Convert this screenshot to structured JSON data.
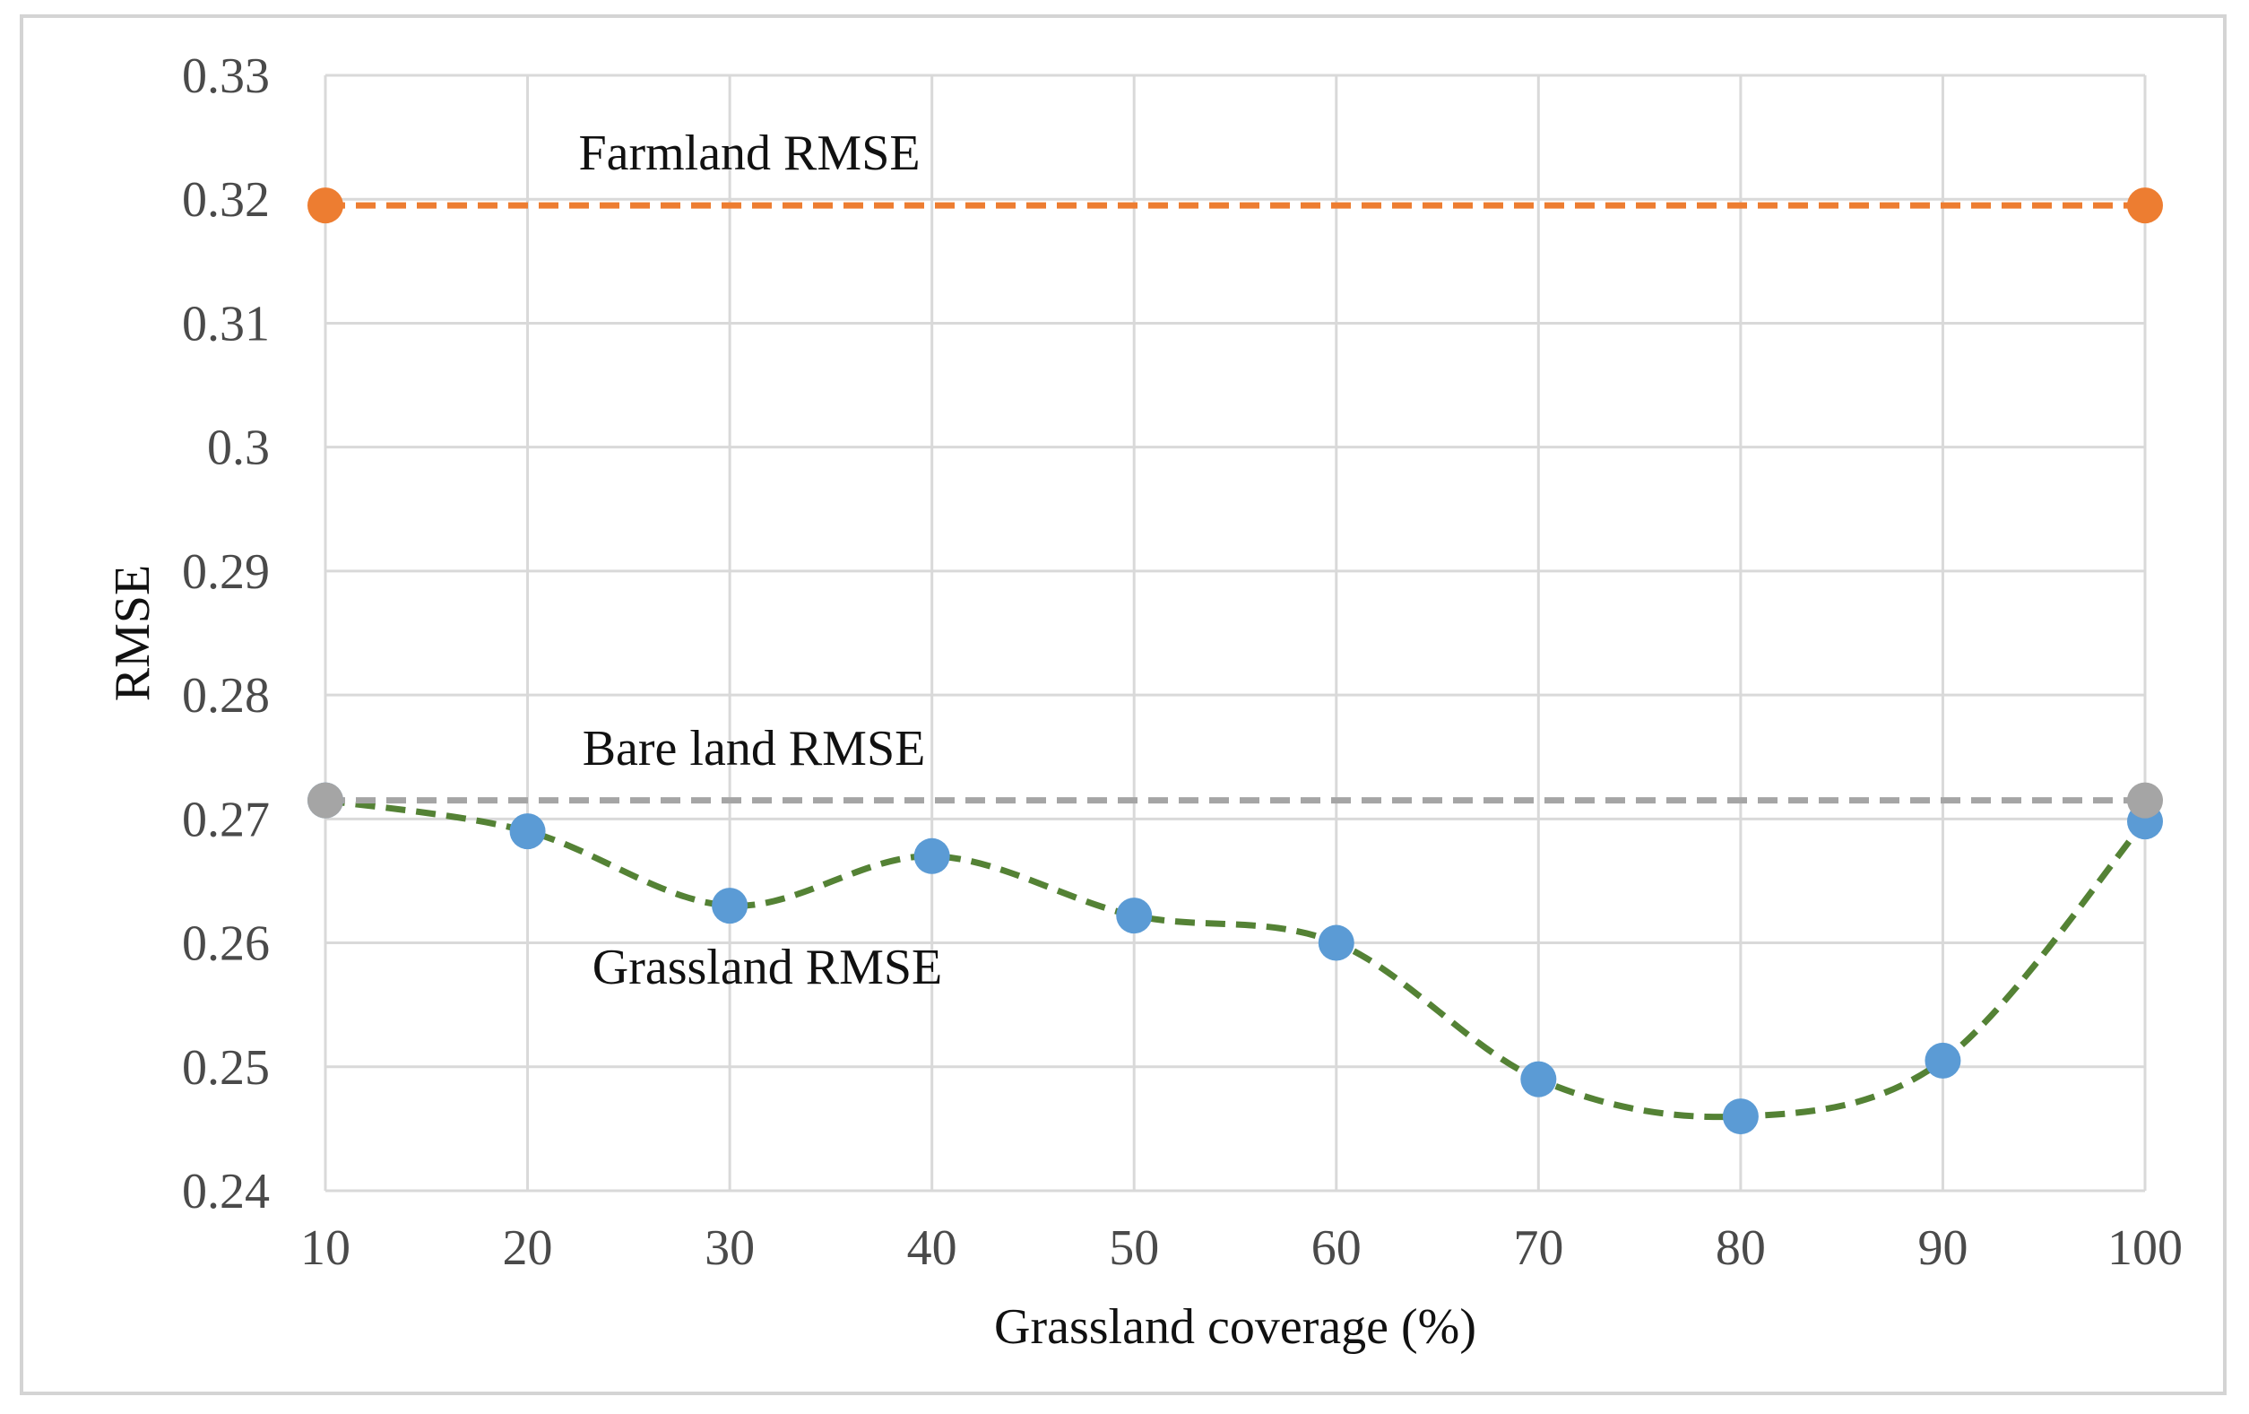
{
  "chart_data": {
    "type": "line",
    "title": "",
    "xlabel": "Grassland coverage (%)",
    "ylabel": "RMSE",
    "x": [
      10,
      20,
      30,
      40,
      50,
      60,
      70,
      80,
      90,
      100
    ],
    "xlim": [
      10,
      100
    ],
    "ylim": [
      0.24,
      0.33
    ],
    "y_ticks": [
      0.24,
      0.25,
      0.26,
      0.27,
      0.28,
      0.29,
      0.3,
      0.31,
      0.32,
      0.33
    ],
    "y_tick_labels": [
      "0.24",
      "0.25",
      "0.26",
      "0.27",
      "0.28",
      "0.29",
      "0.3",
      "0.31",
      "0.32",
      "0.33"
    ],
    "x_tick_labels": [
      "10",
      "20",
      "30",
      "40",
      "50",
      "60",
      "70",
      "80",
      "90",
      "100"
    ],
    "grid": true,
    "series": [
      {
        "name": "Farmland RMSE",
        "x": [
          10,
          100
        ],
        "values": [
          0.3195,
          0.3195
        ],
        "line_color": "#ed7d31",
        "marker_color": "#ed7d31",
        "line_style": "dashed",
        "smooth": false
      },
      {
        "name": "Bare land RMSE",
        "x": [
          10,
          100
        ],
        "values": [
          0.2715,
          0.2715
        ],
        "line_color": "#a5a5a5",
        "marker_color": "#a5a5a5",
        "line_style": "dashed",
        "smooth": false
      },
      {
        "name": "Grassland RMSE",
        "x": [
          10,
          20,
          30,
          40,
          50,
          60,
          70,
          80,
          90,
          100
        ],
        "values": [
          0.2715,
          0.269,
          0.263,
          0.267,
          0.2622,
          0.26,
          0.249,
          0.246,
          0.2505,
          0.2698
        ],
        "line_color": "#548235",
        "marker_color": "#5b9bd5",
        "line_style": "dashed",
        "smooth": true
      }
    ],
    "annotations": [
      {
        "text": "Farmland RMSE",
        "series": "Farmland RMSE"
      },
      {
        "text": "Bare land RMSE",
        "series": "Bare land RMSE"
      },
      {
        "text": "Grassland RMSE",
        "series": "Grassland RMSE"
      }
    ]
  }
}
